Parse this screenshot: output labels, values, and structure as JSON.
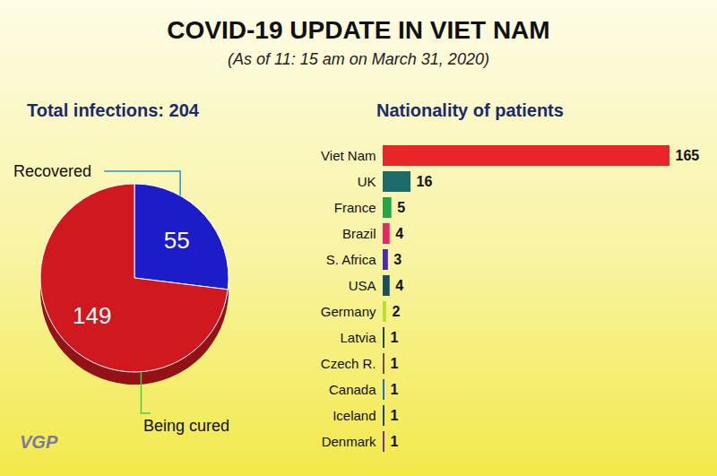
{
  "title": "COVID-19 UPDATE IN VIET NAM",
  "subtitle": "(As of 11: 15 am on March 31, 2020)",
  "credit": "VGP",
  "chart_data": [
    {
      "type": "pie",
      "title": "Total infections: 204",
      "categories": [
        "Recovered",
        "Being cured"
      ],
      "values": [
        55,
        149
      ],
      "colors": [
        "#1c1cc8",
        "#d0191e"
      ],
      "data_labels": true
    },
    {
      "type": "bar",
      "title": "Nationality of patients",
      "orientation": "horizontal",
      "categories": [
        "Viet Nam",
        "UK",
        "France",
        "Brazil",
        "S. Africa",
        "USA",
        "Germany",
        "Latvia",
        "Czech R.",
        "Canada",
        "Iceland",
        "Denmark"
      ],
      "values": [
        165,
        16,
        5,
        4,
        3,
        4,
        2,
        1,
        1,
        1,
        1,
        1
      ],
      "colors": [
        "#e8262a",
        "#1d6b6b",
        "#22a64a",
        "#e8256b",
        "#4a2bb0",
        "#1d4f5f",
        "#b8e02a",
        "#12401a",
        "#6b4a30",
        "#1a6ad0",
        "#1a3a6a",
        "#7a2a9a"
      ],
      "xlim": [
        0,
        165
      ],
      "tick_labels": "y",
      "grid": false,
      "data_labels": true
    }
  ]
}
